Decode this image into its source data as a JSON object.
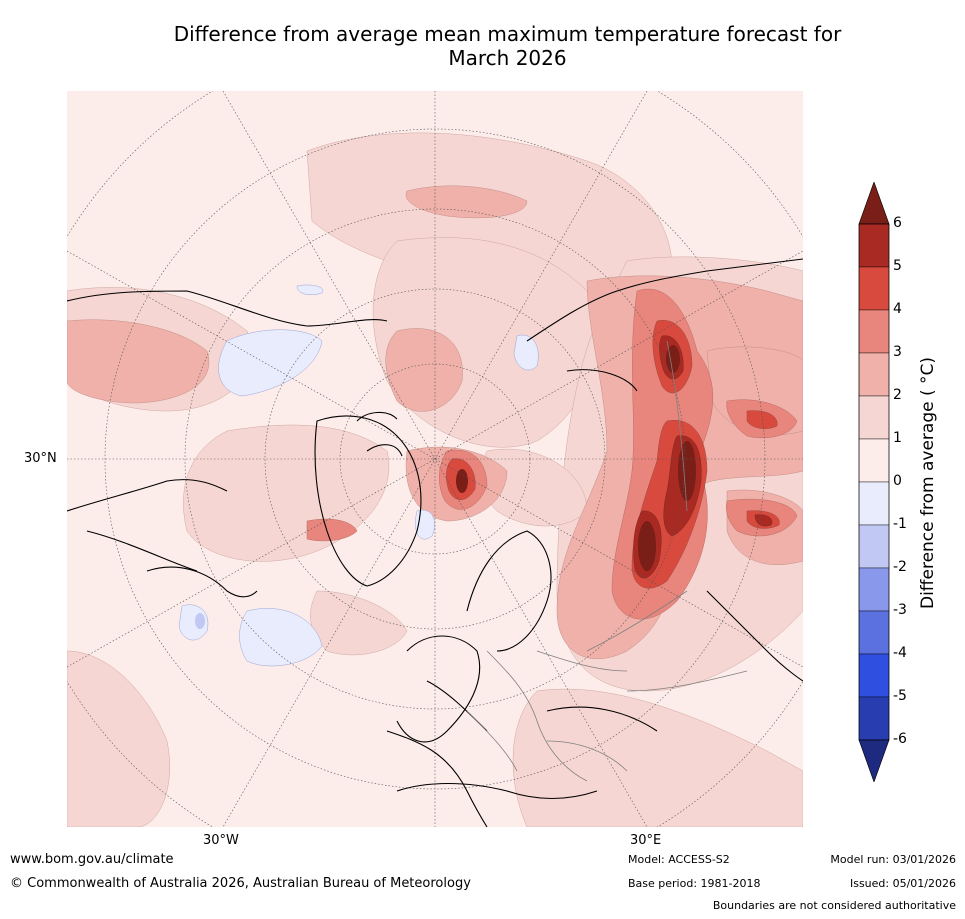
{
  "title_line1": "Difference from average mean maximum temperature forecast for",
  "title_line2": "March 2026",
  "axes": {
    "lat_30n": "30°N",
    "lon_30w": "30°W",
    "lon_30e": "30°E"
  },
  "legend": {
    "title": "Difference from average ( °C)",
    "ticks": [
      "6",
      "5",
      "4",
      "3",
      "2",
      "1",
      "0",
      "-1",
      "-2",
      "-3",
      "-4",
      "-5",
      "-6"
    ],
    "colors": {
      "c6_over": "#7a1e18",
      "c5_6": "#a82a22",
      "c4_5": "#d84a3e",
      "c3_4": "#e8857c",
      "c2_3": "#efb1aa",
      "c1_2": "#f6d6d2",
      "c0_1": "#fcecea",
      "cm1_0": "#e8ecfc",
      "cm2_m1": "#c1c8f3",
      "cm3_m2": "#8a98ec",
      "cm4_m3": "#5b71e0",
      "cm5_m4": "#2e4fe0",
      "cm6_m5": "#283eb0",
      "under": "#1e2a80"
    }
  },
  "footer": {
    "website": "www.bom.gov.au/climate",
    "copyright": "© Commonwealth of Australia 2026, Australian Bureau of Meteorology",
    "model": "Model: ACCESS-S2",
    "base_period": "Base period: 1981-2018",
    "model_run": "Model run: 03/01/2026",
    "issued": "Issued: 05/01/2026",
    "disclaimer": "Boundaries are not considered authoritative"
  }
}
